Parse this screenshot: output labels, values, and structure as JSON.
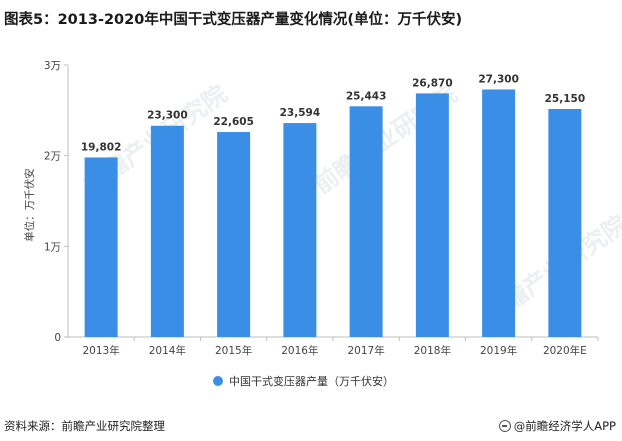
{
  "title": "图表5：2013-2020年中国干式变压器产量变化情况(单位：万千伏安)",
  "footer": {
    "source": "资料来源：前瞻产业研究院整理",
    "brand": "@前瞻经济学人APP"
  },
  "watermark_text": "前瞻产业研究院",
  "colors": {
    "bar": "#3a8ee6",
    "legend_dot": "#3a8ee6"
  },
  "chart_data": {
    "type": "bar",
    "title": "图表5：2013-2020年中国干式变压器产量变化情况(单位：万千伏安)",
    "categories": [
      "2013年",
      "2014年",
      "2015年",
      "2016年",
      "2017年",
      "2018年",
      "2019年",
      "2020年E"
    ],
    "values": [
      19802,
      23300,
      22605,
      23594,
      25443,
      26870,
      27300,
      25150
    ],
    "value_labels": [
      "19,802",
      "23,300",
      "22,605",
      "23,594",
      "25,443",
      "26,870",
      "27,300",
      "25,150"
    ],
    "xlabel": "",
    "ylabel": "单位：万千伏安",
    "ylim": [
      0,
      30000
    ],
    "yticks": [
      0,
      10000,
      20000,
      30000
    ],
    "ytick_labels": [
      "0",
      "1万",
      "2万",
      "3万"
    ],
    "legend": [
      "中国干式变压器产量（万千伏安）"
    ],
    "legend_position": "bottom-center",
    "grid": false
  }
}
